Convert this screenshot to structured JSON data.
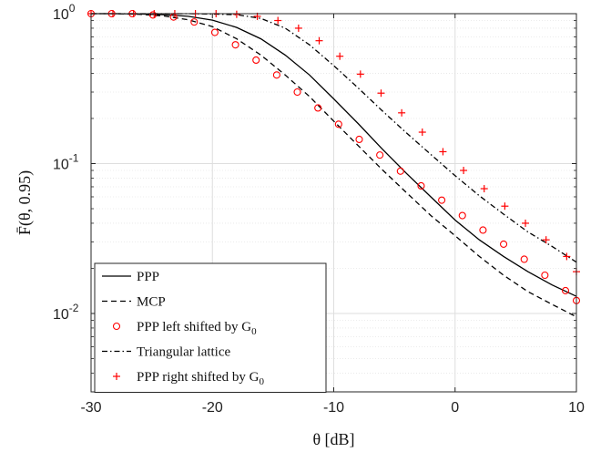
{
  "chart_data": {
    "type": "line",
    "xlabel": "θ [dB]",
    "ylabel": "F̄(θ, 0.95)",
    "xlim": [
      -30,
      10
    ],
    "ylim": [
      0.003,
      1.0
    ],
    "yscale": "log",
    "grid": true,
    "legend_position": "bottom-left",
    "x_ticks": [
      {
        "value": -30,
        "label": "-30"
      },
      {
        "value": -20,
        "label": "-20"
      },
      {
        "value": -10,
        "label": "-10"
      },
      {
        "value": 0,
        "label": "0"
      },
      {
        "value": 10,
        "label": "10"
      }
    ],
    "y_ticks": [
      {
        "value": 1,
        "base": "10",
        "exp": "0"
      },
      {
        "value": 0.1,
        "base": "10",
        "exp": "-1"
      },
      {
        "value": 0.01,
        "base": "10",
        "exp": "-2"
      }
    ],
    "series": [
      {
        "name": "PPP",
        "style": "solid",
        "color": "#000000",
        "x": [
          -30,
          -28,
          -26,
          -24,
          -22,
          -20,
          -18,
          -16,
          -14,
          -12,
          -10,
          -8,
          -6,
          -4,
          -2,
          0,
          2,
          4,
          6,
          8,
          10
        ],
        "y": [
          1.0,
          1.0,
          0.995,
          0.985,
          0.96,
          0.905,
          0.81,
          0.68,
          0.53,
          0.39,
          0.27,
          0.185,
          0.125,
          0.086,
          0.06,
          0.042,
          0.031,
          0.024,
          0.019,
          0.0155,
          0.013
        ]
      },
      {
        "name": "MCP",
        "style": "dashed",
        "color": "#000000",
        "x": [
          -30,
          -28,
          -26,
          -24,
          -22,
          -20,
          -18,
          -16,
          -14,
          -12,
          -10,
          -8,
          -6,
          -4,
          -2,
          0,
          2,
          4,
          6,
          8,
          10
        ],
        "y": [
          1.0,
          1.0,
          0.99,
          0.965,
          0.91,
          0.82,
          0.68,
          0.53,
          0.39,
          0.28,
          0.192,
          0.132,
          0.091,
          0.064,
          0.045,
          0.033,
          0.024,
          0.018,
          0.014,
          0.0115,
          0.0095
        ]
      },
      {
        "name": "PPP left shifted by G",
        "name_subscript": "0",
        "style": "marker-circle",
        "color": "#ff0000",
        "x": [
          -30,
          -28.3,
          -26.6,
          -24.9,
          -23.2,
          -21.5,
          -19.8,
          -18.1,
          -16.4,
          -14.7,
          -13.0,
          -11.3,
          -9.6,
          -7.9,
          -6.2,
          -4.5,
          -2.8,
          -1.1,
          0.6,
          2.3,
          4.0,
          5.7,
          7.4,
          9.1,
          10
        ],
        "y": [
          1.0,
          1.0,
          1.0,
          0.98,
          0.95,
          0.88,
          0.75,
          0.62,
          0.49,
          0.39,
          0.3,
          0.235,
          0.183,
          0.145,
          0.114,
          0.089,
          0.071,
          0.057,
          0.045,
          0.036,
          0.029,
          0.023,
          0.018,
          0.0142,
          0.0122
        ]
      },
      {
        "name": "Triangular lattice",
        "style": "dashdot",
        "color": "#000000",
        "x": [
          -30,
          -28,
          -26,
          -24,
          -22,
          -20,
          -18,
          -16,
          -14,
          -12,
          -10,
          -8,
          -6,
          -4,
          -2,
          0,
          2,
          4,
          6,
          8,
          10
        ],
        "y": [
          1.0,
          1.0,
          1.0,
          1.0,
          1.0,
          0.995,
          0.985,
          0.93,
          0.8,
          0.62,
          0.45,
          0.32,
          0.225,
          0.16,
          0.115,
          0.083,
          0.061,
          0.046,
          0.035,
          0.028,
          0.022
        ]
      },
      {
        "name": "PPP right shifted by G",
        "name_subscript": "0",
        "style": "marker-plus",
        "color": "#ff0000",
        "x": [
          -30,
          -28.2,
          -26.5,
          -24.8,
          -23.1,
          -21.4,
          -19.7,
          -18.0,
          -16.3,
          -14.6,
          -12.9,
          -11.2,
          -9.5,
          -7.8,
          -6.1,
          -4.4,
          -2.7,
          -1.0,
          0.7,
          2.4,
          4.1,
          5.8,
          7.5,
          9.2,
          10
        ],
        "y": [
          1.0,
          1.0,
          1.0,
          1.0,
          1.0,
          1.0,
          1.0,
          0.99,
          0.96,
          0.9,
          0.8,
          0.66,
          0.52,
          0.395,
          0.295,
          0.218,
          0.162,
          0.12,
          0.09,
          0.068,
          0.052,
          0.04,
          0.031,
          0.024,
          0.019
        ]
      }
    ]
  }
}
